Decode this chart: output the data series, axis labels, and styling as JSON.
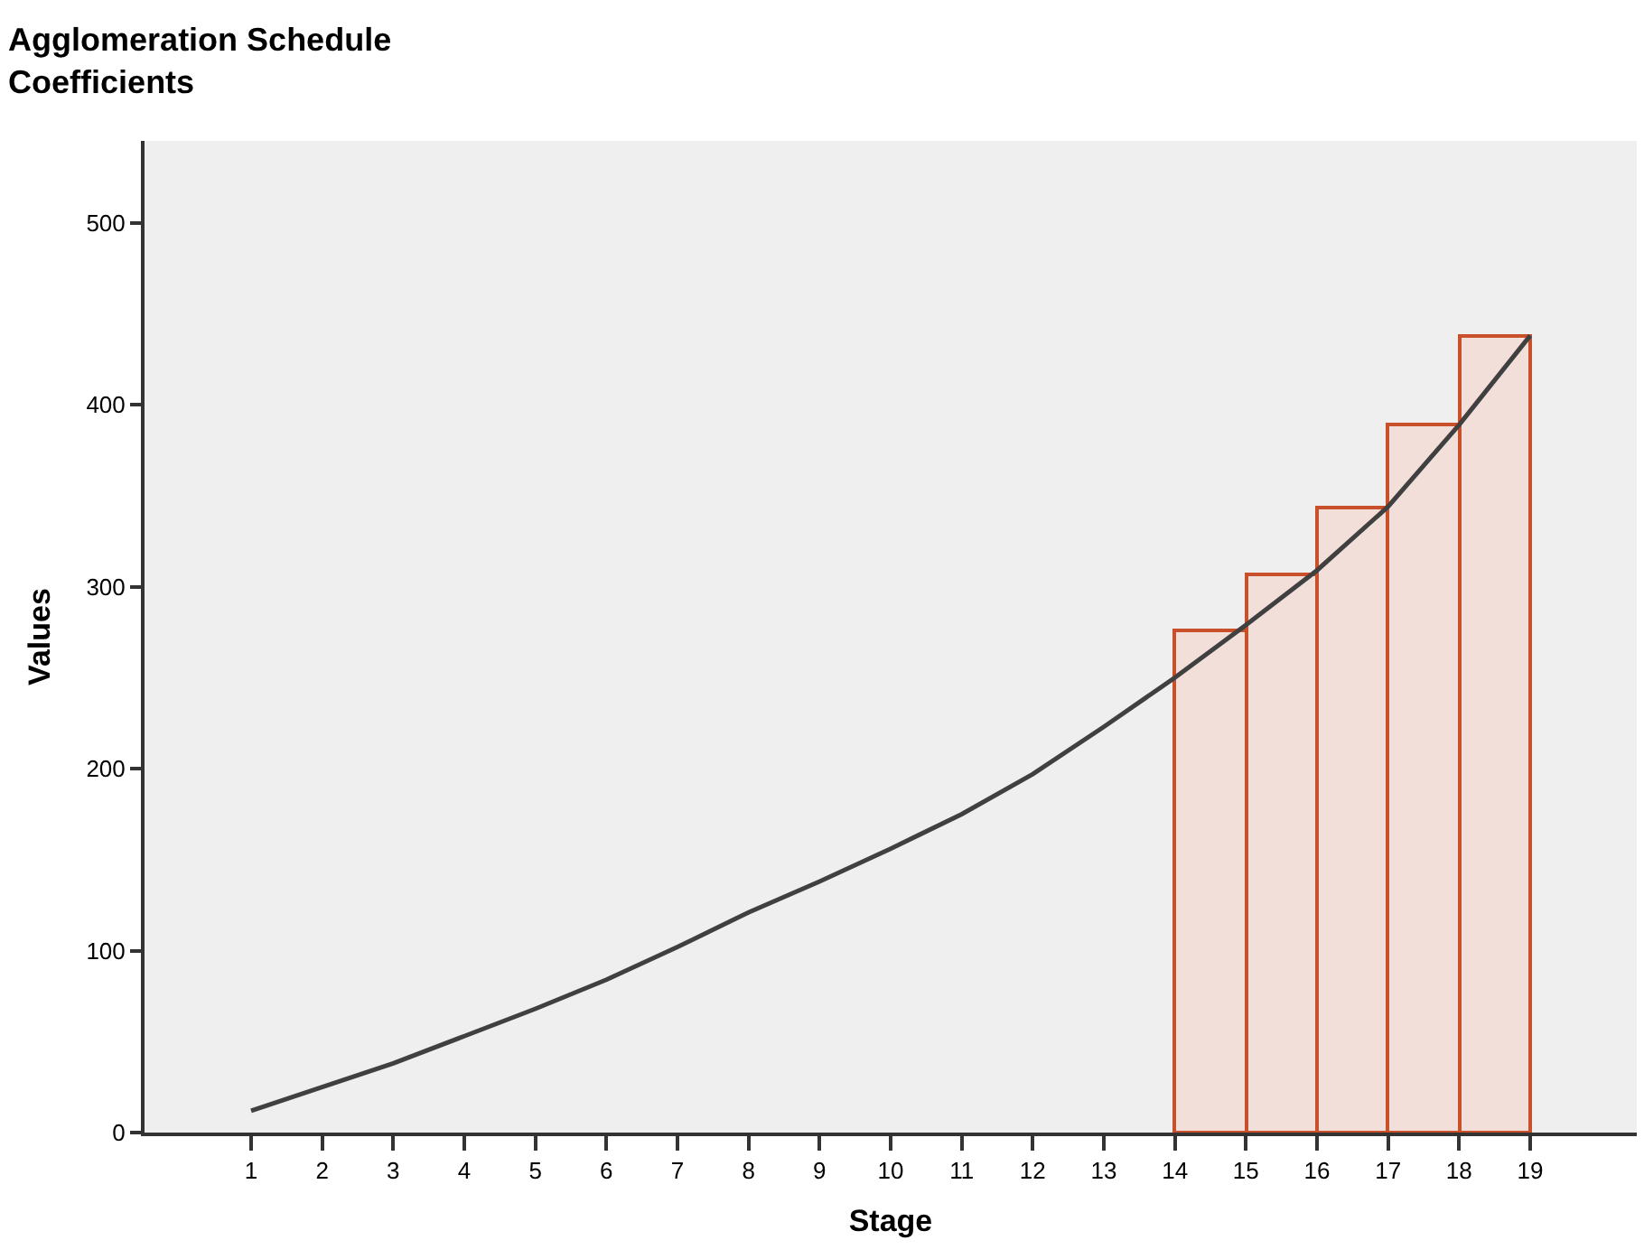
{
  "chart_data": {
    "type": "line",
    "title": "Agglomeration Schedule",
    "subtitle": "Coefficients",
    "xlabel": "Stage",
    "ylabel": "Values",
    "xlim": [
      -0.5,
      20.5
    ],
    "xticks": [
      1,
      2,
      3,
      4,
      5,
      6,
      7,
      8,
      9,
      10,
      11,
      12,
      13,
      14,
      15,
      16,
      17,
      18,
      19
    ],
    "ylim": [
      0,
      545
    ],
    "yticks": [
      0,
      100,
      200,
      300,
      400,
      500
    ],
    "series": [
      {
        "type": "histogram",
        "color": "#f2dfd9",
        "bins": [
          14,
          15,
          16,
          17,
          18,
          19
        ],
        "values": [
          276,
          307,
          343,
          389,
          438
        ]
      },
      {
        "color": "#404040",
        "x": [
          1,
          2,
          3,
          4,
          5,
          6,
          7,
          8,
          9,
          10,
          11,
          12,
          13,
          14,
          15,
          16,
          17,
          18,
          19
        ],
        "values": [
          12,
          25,
          38,
          53,
          68,
          84,
          102,
          121,
          138,
          156,
          175,
          197,
          223,
          250,
          279,
          309,
          344,
          389,
          438
        ]
      }
    ]
  }
}
